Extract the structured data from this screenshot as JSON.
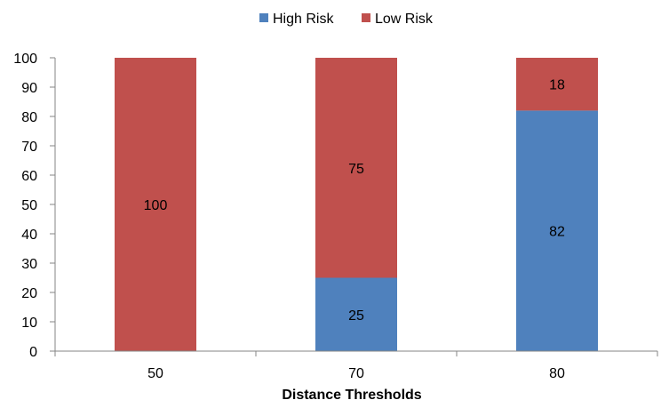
{
  "chart_data": {
    "type": "bar",
    "stacked": true,
    "title": "",
    "xlabel": "Distance Thresholds",
    "ylabel": "",
    "categories": [
      "50",
      "70",
      "80"
    ],
    "series": [
      {
        "name": "High Risk",
        "color": "#4F81BD",
        "values": [
          0,
          25,
          82
        ]
      },
      {
        "name": "Low Risk",
        "color": "#C0504D",
        "values": [
          100,
          75,
          18
        ]
      }
    ],
    "ylim": [
      0,
      100
    ],
    "yticks": [
      0,
      10,
      20,
      30,
      40,
      50,
      60,
      70,
      80,
      90,
      100
    ],
    "grid": false,
    "legend_position": "top",
    "data_labels": true
  }
}
